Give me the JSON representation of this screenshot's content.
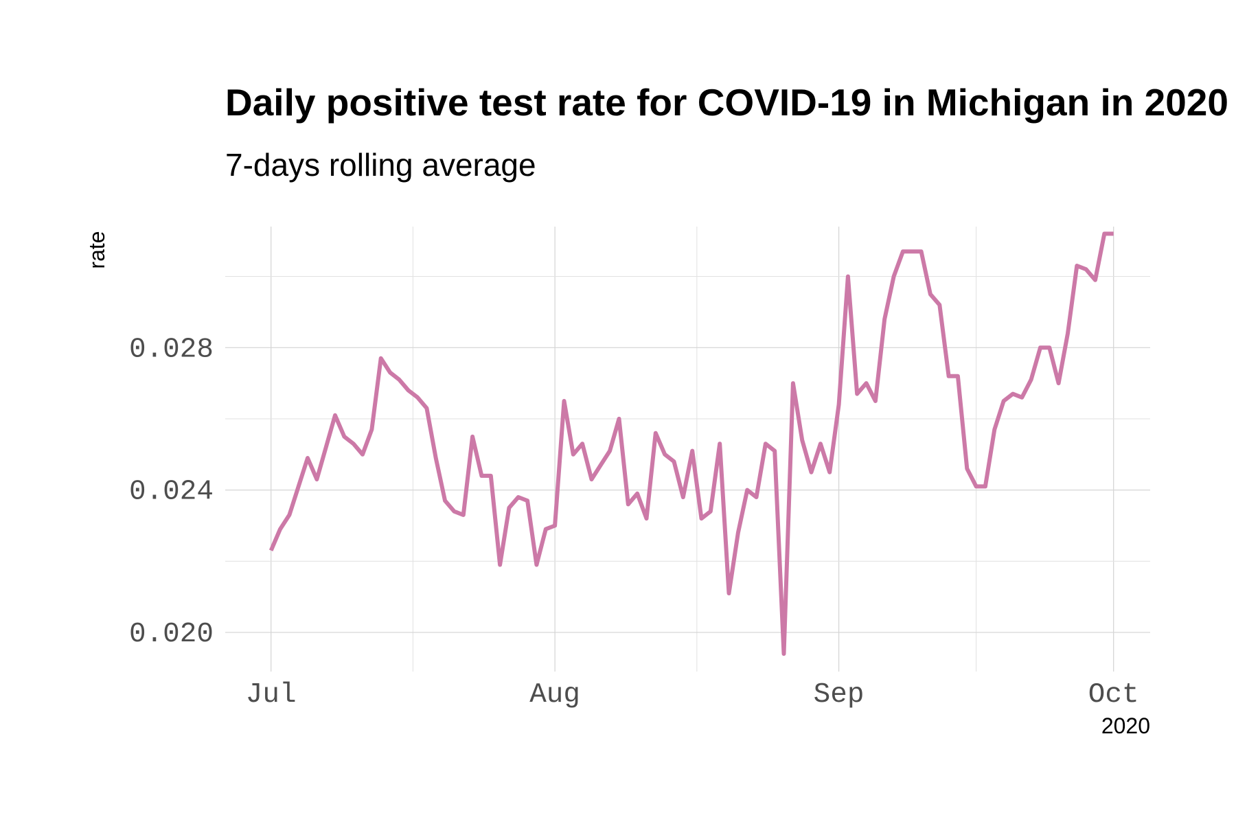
{
  "chart_data": {
    "type": "line",
    "title": "Daily positive test rate for COVID-19 in Michigan in 2020",
    "subtitle": "7-days rolling average",
    "xlabel": "",
    "ylabel": "rate",
    "year_label": "2020",
    "x_start": "2020-07-01",
    "xlim": [
      "2020-06-26",
      "2020-10-05"
    ],
    "ylim": [
      0.0189,
      0.0314
    ],
    "x_ticks": [
      {
        "date": "2020-07-01",
        "label": "Jul"
      },
      {
        "date": "2020-08-01",
        "label": "Aug"
      },
      {
        "date": "2020-09-01",
        "label": "Sep"
      },
      {
        "date": "2020-10-01",
        "label": "Oct"
      }
    ],
    "y_ticks": [
      {
        "value": 0.02,
        "label": "0.020"
      },
      {
        "value": 0.024,
        "label": "0.024"
      },
      {
        "value": 0.028,
        "label": "0.028"
      }
    ],
    "grid": true,
    "color": "#cc79a7",
    "series": [
      {
        "values": [
          0.0223,
          0.0229,
          0.0233,
          0.0241,
          0.0249,
          0.0243,
          0.0252,
          0.0261,
          0.0255,
          0.0253,
          0.025,
          0.0257,
          0.0277,
          0.0273,
          0.0271,
          0.0268,
          0.0266,
          0.0263,
          0.0249,
          0.0237,
          0.0234,
          0.0233,
          0.0255,
          0.0244,
          0.0244,
          0.0219,
          0.0235,
          0.0238,
          0.0237,
          0.0219,
          0.0229,
          0.023,
          0.0265,
          0.025,
          0.0253,
          0.0243,
          0.0247,
          0.0251,
          0.026,
          0.0236,
          0.0239,
          0.0232,
          0.0256,
          0.025,
          0.0248,
          0.0238,
          0.0251,
          0.0232,
          0.0234,
          0.0253,
          0.0211,
          0.0228,
          0.024,
          0.0238,
          0.0253,
          0.0251,
          0.0194,
          0.027,
          0.0254,
          0.0245,
          0.0253,
          0.0245,
          0.0264,
          0.03,
          0.0267,
          0.027,
          0.0265,
          0.0288,
          0.03,
          0.0307,
          0.0307,
          0.0307,
          0.0295,
          0.0292,
          0.0272,
          0.0272,
          0.0246,
          0.0241,
          0.0241,
          0.0257,
          0.0265,
          0.0267,
          0.0266,
          0.0271,
          0.028,
          0.028,
          0.027,
          0.0284,
          0.0303,
          0.0302,
          0.0299,
          0.0312,
          0.0312
        ]
      }
    ]
  }
}
